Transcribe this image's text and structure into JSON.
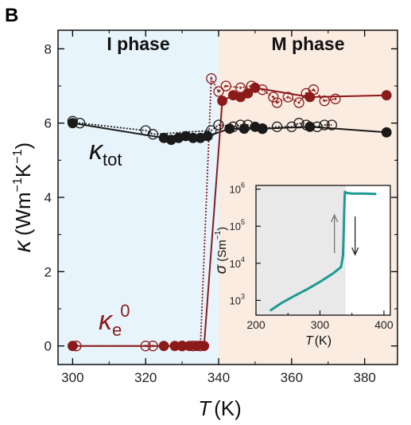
{
  "panel_label": "B",
  "colors": {
    "i_phase_bg": "#e8f4fb",
    "m_phase_bg": "#fbece2",
    "ktot": "#1a1a1a",
    "ke": "#8b1a1a",
    "inset_line": "#1e9a94",
    "inset_shade": "#e9e9e9"
  },
  "chart_data": [
    {
      "type": "line",
      "phase_labels": [
        "I phase",
        "M phase"
      ],
      "phase_boundary_x": 340,
      "xlabel_symbol": "T",
      "xlabel_unit": "(K)",
      "ylabel_symbol": "κ",
      "ylabel_unit_open": "(Wm",
      "ylabel_sup1": "−1",
      "ylabel_mid": "K",
      "ylabel_sup2": "−1",
      "ylabel_unit_close": ")",
      "xlim": [
        296,
        389
      ],
      "ylim": [
        -0.5,
        8.5
      ],
      "x_ticks": [
        300,
        320,
        340,
        360,
        380
      ],
      "y_ticks": [
        0,
        2,
        4,
        6,
        8
      ],
      "annotations": {
        "ktot_symbol": "κ",
        "ktot_sub": "tot",
        "ke_symbol": "κ",
        "ke_sub": "e",
        "ke_sup": "0"
      },
      "series": [
        {
          "key": "ktot_filled",
          "marker": "filled",
          "line": "solid",
          "color": "#1a1a1a",
          "x": [
            300,
            325,
            327,
            329,
            331,
            333,
            335,
            337,
            343,
            347,
            350,
            352,
            365,
            386
          ],
          "y": [
            6.0,
            5.6,
            5.55,
            5.6,
            5.65,
            5.6,
            5.6,
            5.65,
            5.85,
            5.85,
            5.9,
            5.85,
            5.9,
            5.75
          ]
        },
        {
          "key": "ktot_open",
          "marker": "open",
          "line": "dotted",
          "color": "#1a1a1a",
          "x": [
            300,
            302,
            320,
            322,
            338,
            340,
            344,
            346,
            348,
            352,
            356,
            360,
            362,
            364,
            367,
            369,
            371
          ],
          "y": [
            6.05,
            6.0,
            5.8,
            5.7,
            5.8,
            5.95,
            5.9,
            5.95,
            5.95,
            5.85,
            5.9,
            5.9,
            6.0,
            5.95,
            5.9,
            5.95,
            5.95
          ]
        },
        {
          "key": "ke_filled",
          "marker": "filled",
          "line": "solid",
          "color": "#8b1a1a",
          "x": [
            300,
            325,
            328,
            330,
            332,
            334,
            336,
            341,
            344,
            346,
            348,
            350,
            365,
            386
          ],
          "y": [
            0.0,
            0.0,
            0.0,
            0.0,
            0.0,
            0.0,
            0.0,
            6.6,
            6.75,
            6.7,
            6.8,
            6.95,
            6.7,
            6.75
          ]
        },
        {
          "key": "ke_open",
          "marker": "open-dotted-center",
          "line": "dotted",
          "color": "#8b1a1a",
          "x": [
            301,
            320,
            322,
            330,
            333,
            335,
            338,
            340,
            342,
            346,
            349,
            352,
            355,
            356,
            359,
            362,
            364,
            366,
            369,
            372
          ],
          "y": [
            0.0,
            0.0,
            0.0,
            0.0,
            0.0,
            0.0,
            7.2,
            6.85,
            7.0,
            6.95,
            7.0,
            6.9,
            6.7,
            6.55,
            6.7,
            6.55,
            6.8,
            6.9,
            6.6,
            6.65
          ]
        }
      ]
    },
    {
      "type": "line",
      "inset": true,
      "xlabel_symbol": "T",
      "xlabel_unit": "(K)",
      "ylabel_symbol": "σ",
      "ylabel_unit_open": "(Sm",
      "ylabel_sup": "−1",
      "ylabel_unit_close": ")",
      "xlim": [
        200,
        410
      ],
      "ylog_lim": [
        2.6,
        6.1
      ],
      "y_log_scale": true,
      "x_ticks": [
        200,
        300,
        400
      ],
      "y_ticks": [
        {
          "base": "10",
          "exp": "3",
          "log": 3
        },
        {
          "base": "10",
          "exp": "4",
          "log": 4
        },
        {
          "base": "10",
          "exp": "5",
          "log": 5
        },
        {
          "base": "10",
          "exp": "6",
          "log": 6
        }
      ],
      "shaded_region_x": [
        200,
        340
      ],
      "heating_arrow": "up",
      "cooling_arrow": "down",
      "series": [
        {
          "key": "sigma",
          "color": "#1e9a94",
          "x": [
            222,
            240,
            260,
            280,
            300,
            320,
            333,
            336,
            337,
            338,
            339,
            340,
            341,
            350,
            370,
            388
          ],
          "log10_y": [
            2.72,
            2.93,
            3.12,
            3.3,
            3.5,
            3.72,
            3.9,
            4.2,
            4.8,
            5.5,
            5.95,
            5.9,
            5.9,
            5.88,
            5.88,
            5.87
          ]
        }
      ]
    }
  ]
}
